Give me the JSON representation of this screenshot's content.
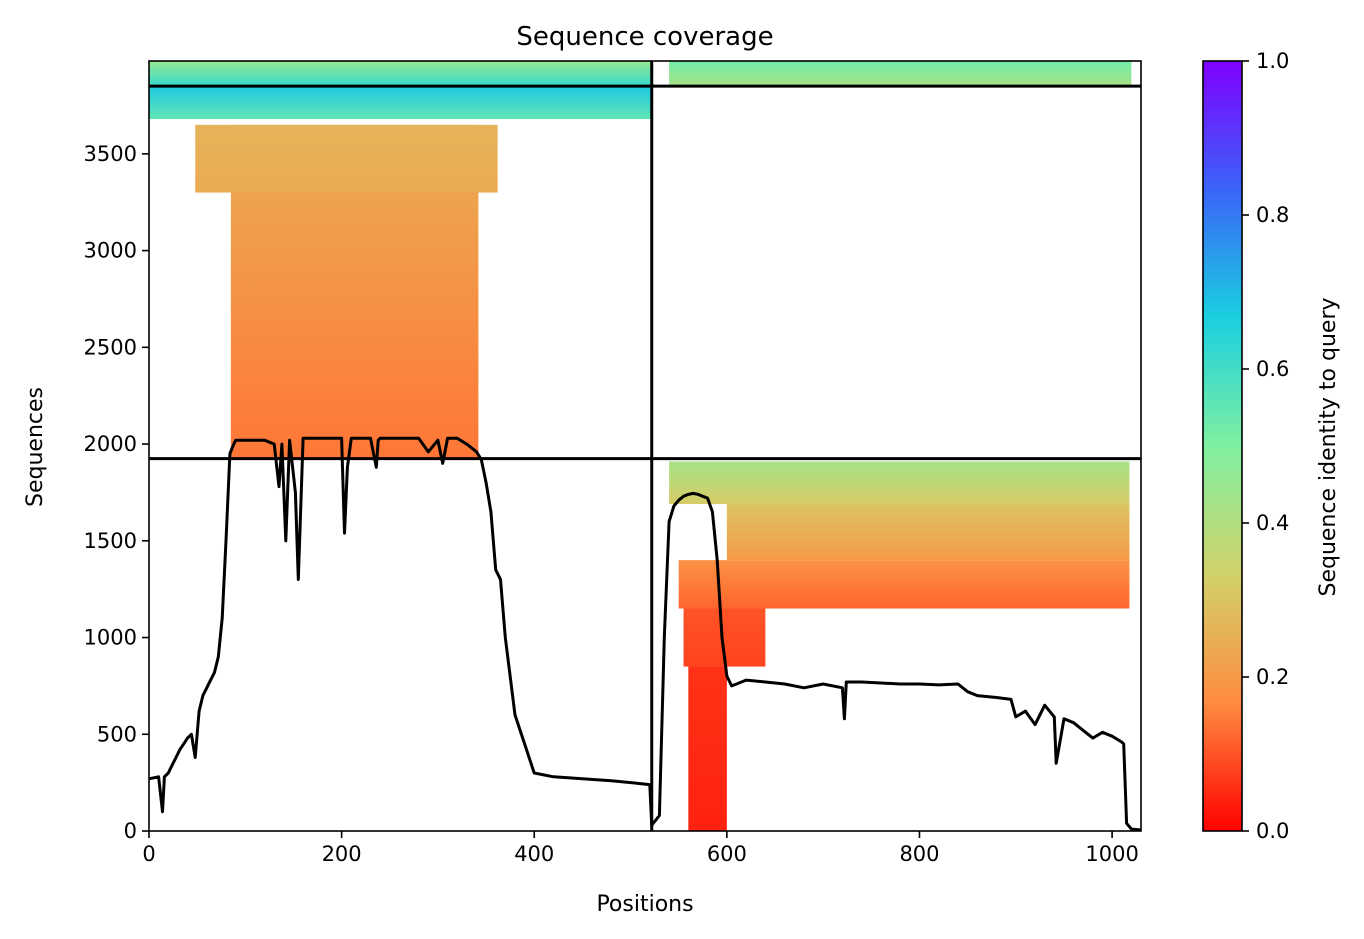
{
  "chart_data": {
    "type": "heatmap",
    "title": "Sequence coverage",
    "xlabel": "Positions",
    "ylabel": "Sequences",
    "xlim": [
      0,
      1030
    ],
    "ylim": [
      0,
      3980
    ],
    "x_ticks": [
      0,
      200,
      400,
      600,
      800,
      1000
    ],
    "y_ticks": [
      0,
      500,
      1000,
      1500,
      2000,
      2500,
      3000,
      3500
    ],
    "grid": false,
    "colorbar": {
      "label": "Sequence identity to query",
      "range": [
        0.0,
        1.0
      ],
      "ticks": [
        "0.0",
        "0.2",
        "0.4",
        "0.6",
        "0.8",
        "1.0"
      ],
      "colormap": "rainbow_r",
      "stops": [
        "#ff0000",
        "#ff8c40",
        "#d2d26a",
        "#7ff0a0",
        "#1ad0e0",
        "#3a64f8",
        "#8000ff"
      ]
    },
    "chain_boundaries": {
      "x": [
        522
      ],
      "y": [
        1925,
        3850
      ]
    },
    "coverage_blocks": [
      {
        "x0": 0,
        "x1": 522,
        "y0": 3850,
        "y1": 3980,
        "identity_bottom": 0.62,
        "identity_top": 0.45
      },
      {
        "x0": 0,
        "x1": 522,
        "y0": 3680,
        "y1": 3850,
        "identity_bottom": 0.55,
        "identity_top": 0.68
      },
      {
        "x0": 85,
        "x1": 342,
        "y0": 1925,
        "y1": 3650,
        "identity_bottom": 0.14,
        "identity_top": 0.25
      },
      {
        "x0": 48,
        "x1": 362,
        "y0": 3300,
        "y1": 3650,
        "identity_bottom": 0.24,
        "identity_top": 0.26
      },
      {
        "x0": 540,
        "x1": 1020,
        "y0": 3850,
        "y1": 3980,
        "identity_bottom": 0.42,
        "identity_top": 0.52
      },
      {
        "x0": 540,
        "x1": 1018,
        "y0": 1690,
        "y1": 1910,
        "identity_bottom": 0.32,
        "identity_top": 0.42
      },
      {
        "x0": 600,
        "x1": 1018,
        "y0": 1400,
        "y1": 1690,
        "identity_bottom": 0.2,
        "identity_top": 0.3
      },
      {
        "x0": 550,
        "x1": 1018,
        "y0": 1150,
        "y1": 1400,
        "identity_bottom": 0.12,
        "identity_top": 0.18
      },
      {
        "x0": 555,
        "x1": 640,
        "y0": 850,
        "y1": 1150,
        "identity_bottom": 0.08,
        "identity_top": 0.1
      },
      {
        "x0": 560,
        "x1": 600,
        "y0": 0,
        "y1": 850,
        "identity_bottom": 0.04,
        "identity_top": 0.06
      }
    ],
    "series": [
      {
        "type": "line",
        "color": "#000000",
        "x": [
          0,
          10,
          14,
          16,
          20,
          24,
          28,
          32,
          36,
          40,
          44,
          48,
          52,
          56,
          60,
          64,
          68,
          72,
          76,
          80,
          84,
          86,
          88,
          90,
          100,
          120,
          130,
          135,
          138,
          142,
          146,
          152,
          155,
          160,
          170,
          180,
          190,
          200,
          203,
          206,
          210,
          220,
          230,
          236,
          238,
          240,
          250,
          270,
          280,
          290,
          300,
          305,
          310,
          320,
          330,
          340,
          345,
          350,
          355,
          360,
          365,
          370,
          380,
          390,
          400,
          420,
          450,
          480,
          510,
          520,
          522,
          530,
          535,
          540,
          545,
          550,
          555,
          560,
          565,
          570,
          580,
          585,
          590,
          595,
          600,
          605,
          610,
          620,
          640,
          660,
          680,
          700,
          720,
          722,
          724,
          740,
          760,
          780,
          800,
          820,
          840,
          850,
          860,
          880,
          895,
          900,
          910,
          920,
          930,
          940,
          942,
          950,
          960,
          970,
          980,
          990,
          1000,
          1010,
          1012,
          1015,
          1020,
          1030
        ],
        "y": [
          270,
          280,
          100,
          280,
          300,
          340,
          380,
          420,
          450,
          480,
          500,
          380,
          620,
          700,
          740,
          780,
          820,
          900,
          1100,
          1500,
          1950,
          1975,
          2000,
          2020,
          2020,
          2020,
          2000,
          1780,
          2000,
          1500,
          2020,
          1750,
          1300,
          2030,
          2030,
          2030,
          2030,
          2030,
          1540,
          1880,
          2030,
          2030,
          2030,
          1880,
          2020,
          2030,
          2030,
          2030,
          2030,
          1960,
          2020,
          1900,
          2030,
          2030,
          2000,
          1960,
          1920,
          1800,
          1650,
          1350,
          1300,
          1000,
          600,
          450,
          300,
          280,
          270,
          260,
          245,
          240,
          30,
          80,
          1000,
          1600,
          1680,
          1710,
          1730,
          1740,
          1745,
          1740,
          1720,
          1650,
          1400,
          1000,
          800,
          750,
          760,
          780,
          770,
          760,
          740,
          760,
          740,
          580,
          770,
          770,
          765,
          760,
          760,
          755,
          760,
          720,
          700,
          690,
          680,
          590,
          620,
          550,
          650,
          590,
          350,
          580,
          560,
          520,
          480,
          510,
          490,
          460,
          450,
          40,
          10,
          5
        ]
      }
    ]
  }
}
